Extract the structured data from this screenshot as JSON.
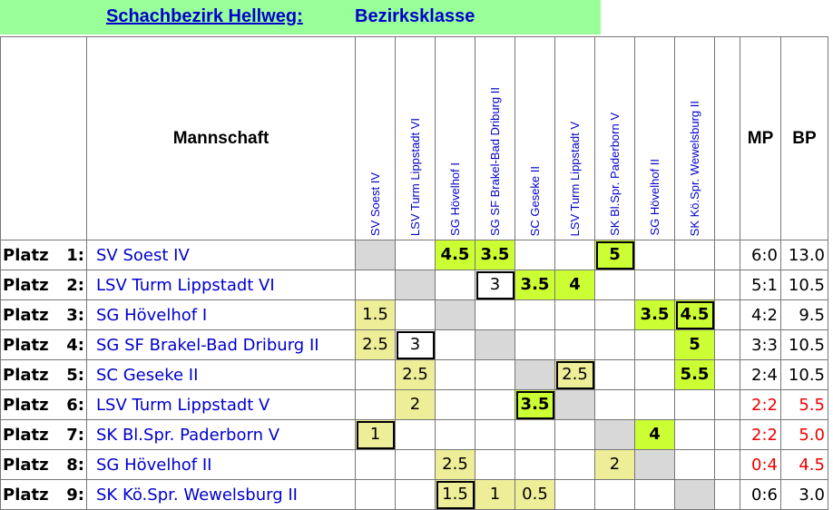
{
  "banner": {
    "league_name": "Schachbezirk Hellweg:",
    "class_name": "Bezirksklasse"
  },
  "headers": {
    "team": "Mannschaft",
    "mp": "MP",
    "bp": "BP"
  },
  "columns": [
    "SV Soest IV",
    "LSV Turm Lippstadt VI",
    "SG Hövelhof I",
    "SG SF Brakel-Bad Driburg II",
    "SC Geseke II",
    "LSV Turm Lippstadt V",
    "SK Bl.Spr. Paderborn V",
    "SG Hövelhof II",
    "SK Kö.Spr. Wewelsburg II"
  ],
  "rows": [
    {
      "label": "Platz",
      "pos": "1:",
      "team": "SV Soest IV",
      "cells": [
        {
          "d": 1
        },
        {},
        {
          "v": "4.5",
          "c": "g"
        },
        {
          "v": "3.5",
          "c": "g"
        },
        {},
        {},
        {
          "v": "5",
          "c": "g",
          "b": 1
        },
        {},
        {}
      ],
      "mp": "6:0",
      "bp": "13.0",
      "red": false
    },
    {
      "label": "Platz",
      "pos": "2:",
      "team": "LSV Turm Lippstadt VI",
      "cells": [
        {},
        {
          "d": 1
        },
        {},
        {
          "v": "3",
          "c": "w",
          "b": 1
        },
        {
          "v": "3.5",
          "c": "g"
        },
        {
          "v": "4",
          "c": "g"
        },
        {},
        {},
        {}
      ],
      "mp": "5:1",
      "bp": "10.5",
      "red": false
    },
    {
      "label": "Platz",
      "pos": "3:",
      "team": "SG Hövelhof I",
      "cells": [
        {
          "v": "1.5",
          "c": "y"
        },
        {},
        {
          "d": 1
        },
        {},
        {},
        {},
        {},
        {
          "v": "3.5",
          "c": "g"
        },
        {
          "v": "4.5",
          "c": "g",
          "b": 1
        }
      ],
      "mp": "4:2",
      "bp": "9.5",
      "red": false
    },
    {
      "label": "Platz",
      "pos": "4:",
      "team": "SG SF Brakel-Bad Driburg II",
      "cells": [
        {
          "v": "2.5",
          "c": "y"
        },
        {
          "v": "3",
          "c": "w",
          "b": 1
        },
        {},
        {
          "d": 1
        },
        {},
        {},
        {},
        {},
        {
          "v": "5",
          "c": "g"
        }
      ],
      "mp": "3:3",
      "bp": "10.5",
      "red": false
    },
    {
      "label": "Platz",
      "pos": "5:",
      "team": "SC Geseke II",
      "cells": [
        {},
        {
          "v": "2.5",
          "c": "y"
        },
        {},
        {},
        {
          "d": 1
        },
        {
          "v": "2.5",
          "c": "y",
          "b": 1
        },
        {},
        {},
        {
          "v": "5.5",
          "c": "g"
        }
      ],
      "mp": "2:4",
      "bp": "10.5",
      "red": false
    },
    {
      "label": "Platz",
      "pos": "6:",
      "team": "LSV Turm Lippstadt V",
      "cells": [
        {},
        {
          "v": "2",
          "c": "y"
        },
        {},
        {},
        {
          "v": "3.5",
          "c": "g",
          "b": 1
        },
        {
          "d": 1
        },
        {},
        {},
        {}
      ],
      "mp": "2:2",
      "bp": "5.5",
      "red": true
    },
    {
      "label": "Platz",
      "pos": "7:",
      "team": "SK Bl.Spr. Paderborn V",
      "cells": [
        {
          "v": "1",
          "c": "y",
          "b": 1
        },
        {},
        {},
        {},
        {},
        {},
        {
          "d": 1
        },
        {
          "v": "4",
          "c": "g"
        },
        {}
      ],
      "mp": "2:2",
      "bp": "5.0",
      "red": true
    },
    {
      "label": "Platz",
      "pos": "8:",
      "team": "SG Hövelhof II",
      "cells": [
        {},
        {},
        {
          "v": "2.5",
          "c": "y"
        },
        {},
        {},
        {},
        {
          "v": "2",
          "c": "y"
        },
        {
          "d": 1
        },
        {}
      ],
      "mp": "0:4",
      "bp": "4.5",
      "red": true
    },
    {
      "label": "Platz",
      "pos": "9:",
      "team": "SK Kö.Spr. Wewelsburg II",
      "cells": [
        {},
        {},
        {
          "v": "1.5",
          "c": "y",
          "b": 1
        },
        {
          "v": "1",
          "c": "y"
        },
        {
          "v": "0.5",
          "c": "y"
        },
        {},
        {},
        {},
        {
          "d": 1
        }
      ],
      "mp": "0:6",
      "bp": "3.0",
      "red": false
    }
  ]
}
